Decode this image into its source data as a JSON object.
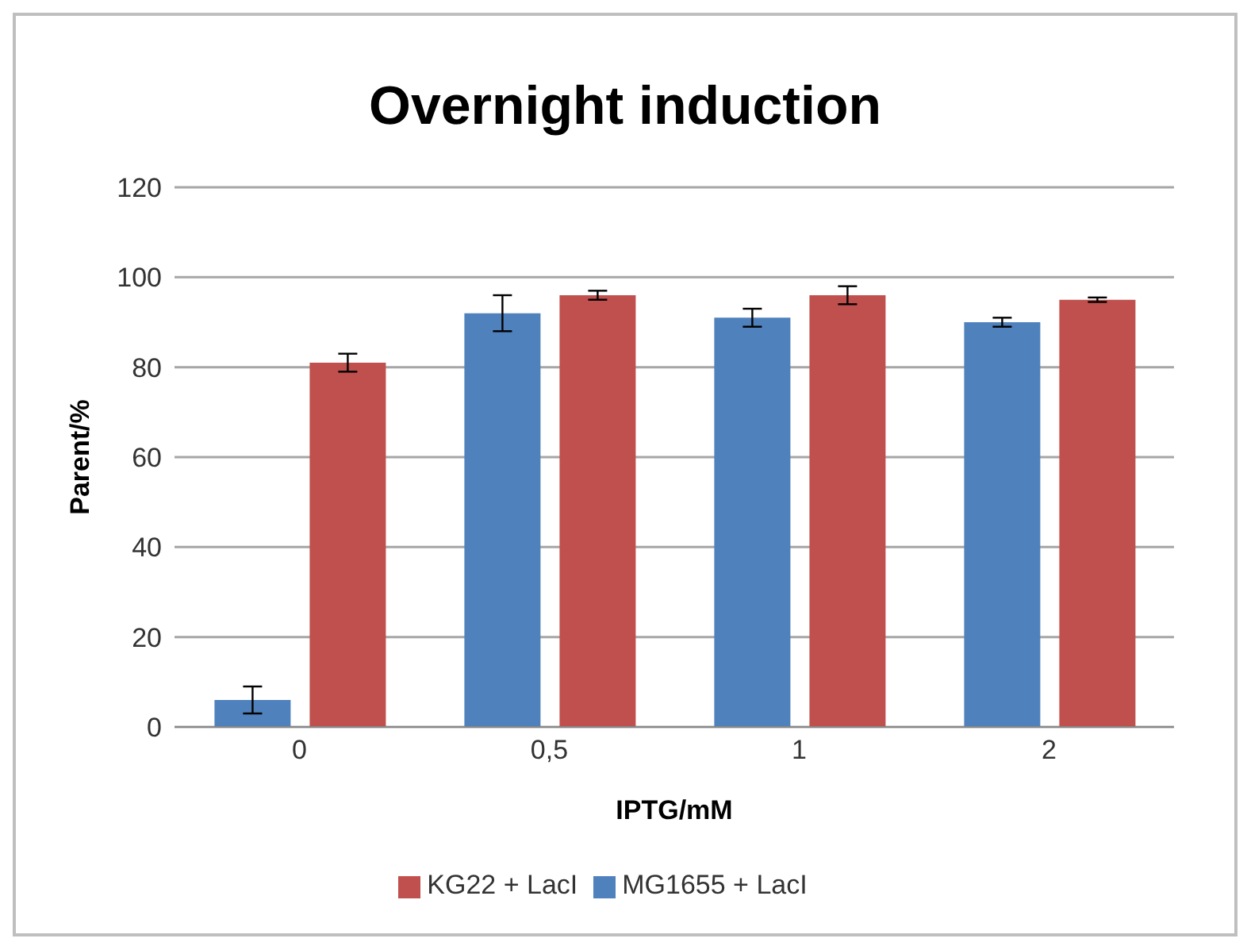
{
  "chart_data": {
    "type": "bar",
    "title": "Overnight induction",
    "xlabel": "IPTG/mM",
    "ylabel": "Parent/%",
    "categories": [
      "0",
      "0,5",
      "1",
      "2"
    ],
    "series": [
      {
        "name": "MG1655 + LacI",
        "color": "#4f81bd",
        "values": [
          6,
          92,
          91,
          90
        ],
        "errors": [
          3,
          4,
          2,
          1
        ]
      },
      {
        "name": "KG22 + LacI",
        "color": "#c0504d",
        "values": [
          81,
          96,
          96,
          95
        ],
        "errors": [
          2,
          1,
          2,
          0.5
        ]
      }
    ],
    "ylim": [
      0,
      120
    ],
    "yticks": [
      0,
      20,
      40,
      60,
      80,
      100,
      120
    ],
    "grid": "y",
    "legend": "bottom"
  }
}
